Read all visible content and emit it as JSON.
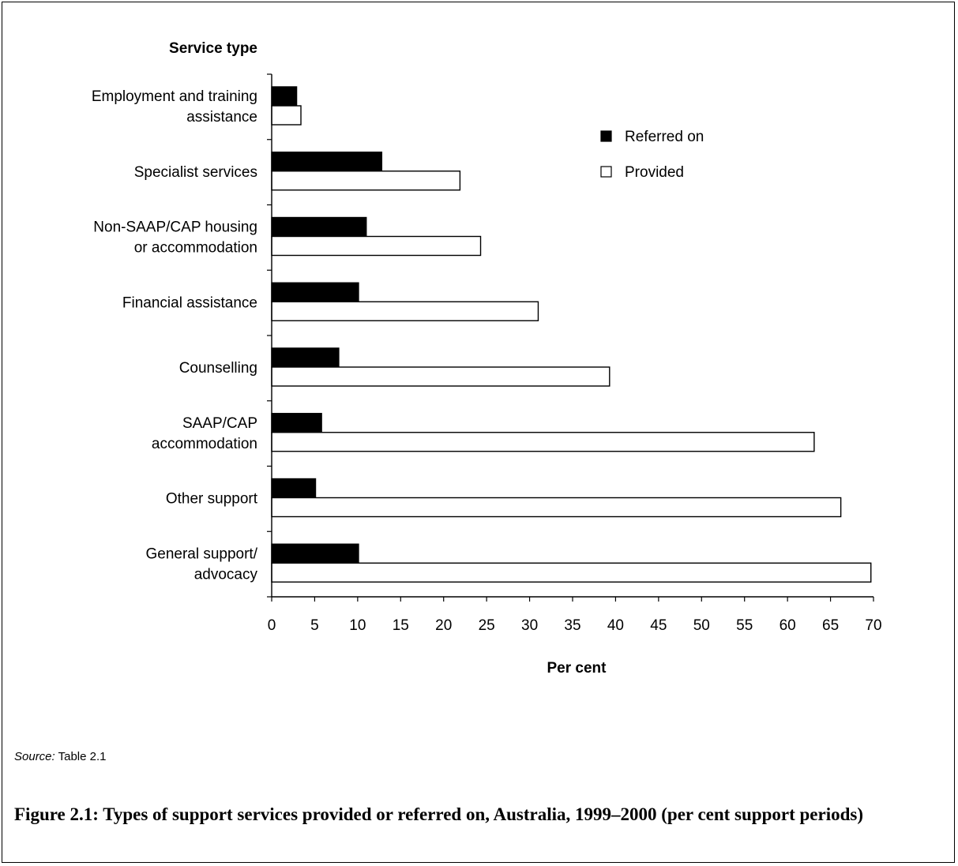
{
  "chart_data": {
    "type": "bar",
    "orientation": "horizontal",
    "categories": [
      [
        "Employment and training",
        "assistance"
      ],
      [
        "Specialist services"
      ],
      [
        "Non-SAAP/CAP housing",
        "or accommodation"
      ],
      [
        "Financial assistance"
      ],
      [
        "Counselling"
      ],
      [
        "SAAP/CAP",
        "accommodation"
      ],
      [
        "Other support"
      ],
      [
        "General support/",
        "advocacy"
      ]
    ],
    "series": [
      {
        "name": "Referred on",
        "color": "#000000",
        "values": [
          2.9,
          12.8,
          11.0,
          10.1,
          7.8,
          5.8,
          5.1,
          10.1
        ]
      },
      {
        "name": "Provided",
        "color": "#ffffff",
        "values": [
          3.4,
          21.9,
          24.3,
          31.0,
          39.3,
          63.1,
          66.2,
          69.7
        ]
      }
    ],
    "ylabel": "Service type",
    "xlabel": "Per cent",
    "xlim": [
      0,
      70
    ],
    "xticks": [
      0,
      5,
      10,
      15,
      20,
      25,
      30,
      35,
      40,
      45,
      50,
      55,
      60,
      65,
      70
    ],
    "grid": false,
    "legend_position": "top-right"
  },
  "source": {
    "label": "Source:",
    "text": "Table 2.1"
  },
  "caption": "Figure 2.1: Types of support services provided or referred on, Australia, 1999–2000 (per cent support periods)"
}
